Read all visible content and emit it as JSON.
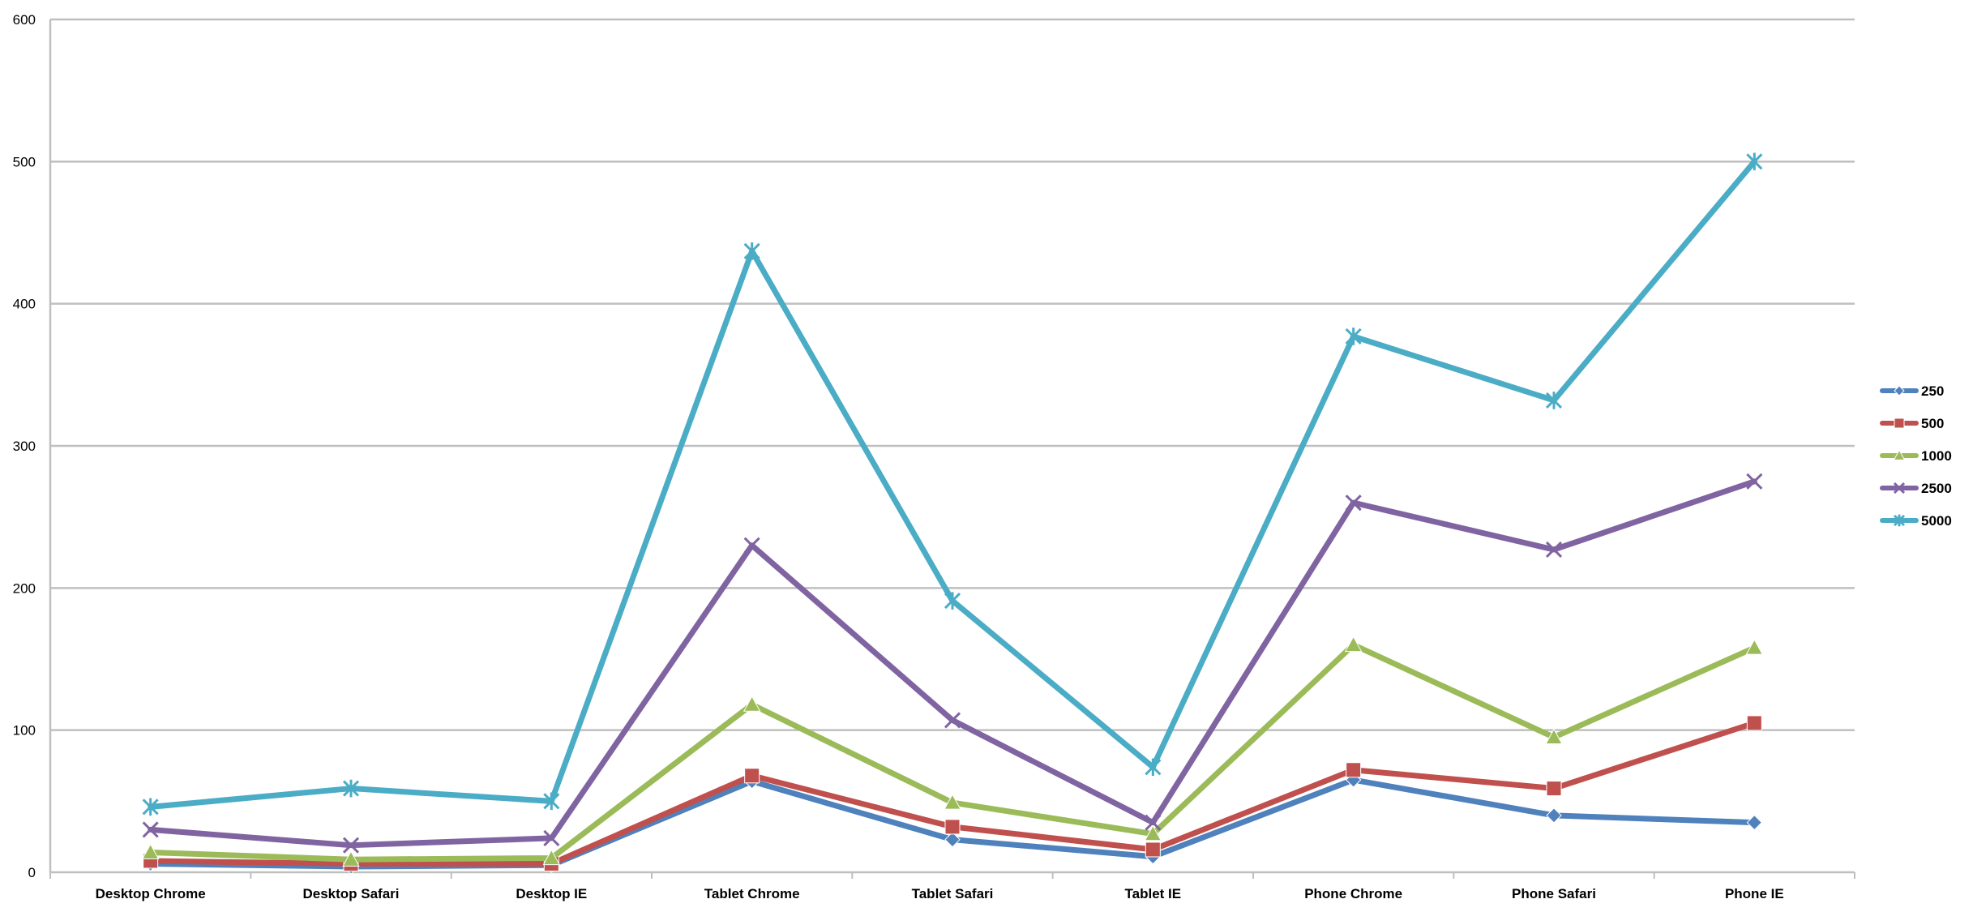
{
  "chart_data": {
    "type": "line",
    "title": "",
    "xlabel": "",
    "ylabel": "",
    "ylim": [
      0,
      600
    ],
    "yticks": [
      0,
      100,
      200,
      300,
      400,
      500,
      600
    ],
    "grid": true,
    "legend_position": "right",
    "categories": [
      "Desktop Chrome",
      "Desktop Safari",
      "Desktop IE",
      "Tablet Chrome",
      "Tablet Safari",
      "Tablet IE",
      "Phone Chrome",
      "Phone Safari",
      "Phone IE"
    ],
    "series": [
      {
        "name": "250",
        "color": "#4F81BD",
        "marker": "diamond",
        "values": [
          6,
          4,
          5,
          64,
          23,
          11,
          65,
          40,
          35
        ]
      },
      {
        "name": "500",
        "color": "#C0504D",
        "marker": "square",
        "values": [
          8,
          6,
          6,
          68,
          32,
          16,
          72,
          59,
          105
        ]
      },
      {
        "name": "1000",
        "color": "#9BBB59",
        "marker": "triangle",
        "values": [
          14,
          9,
          10,
          118,
          49,
          27,
          160,
          95,
          158
        ]
      },
      {
        "name": "2500",
        "color": "#8064A2",
        "marker": "x",
        "values": [
          30,
          19,
          24,
          230,
          107,
          35,
          260,
          227,
          275
        ]
      },
      {
        "name": "5000",
        "color": "#4BACC6",
        "marker": "star",
        "values": [
          46,
          59,
          50,
          437,
          191,
          74,
          377,
          332,
          500
        ]
      }
    ]
  }
}
